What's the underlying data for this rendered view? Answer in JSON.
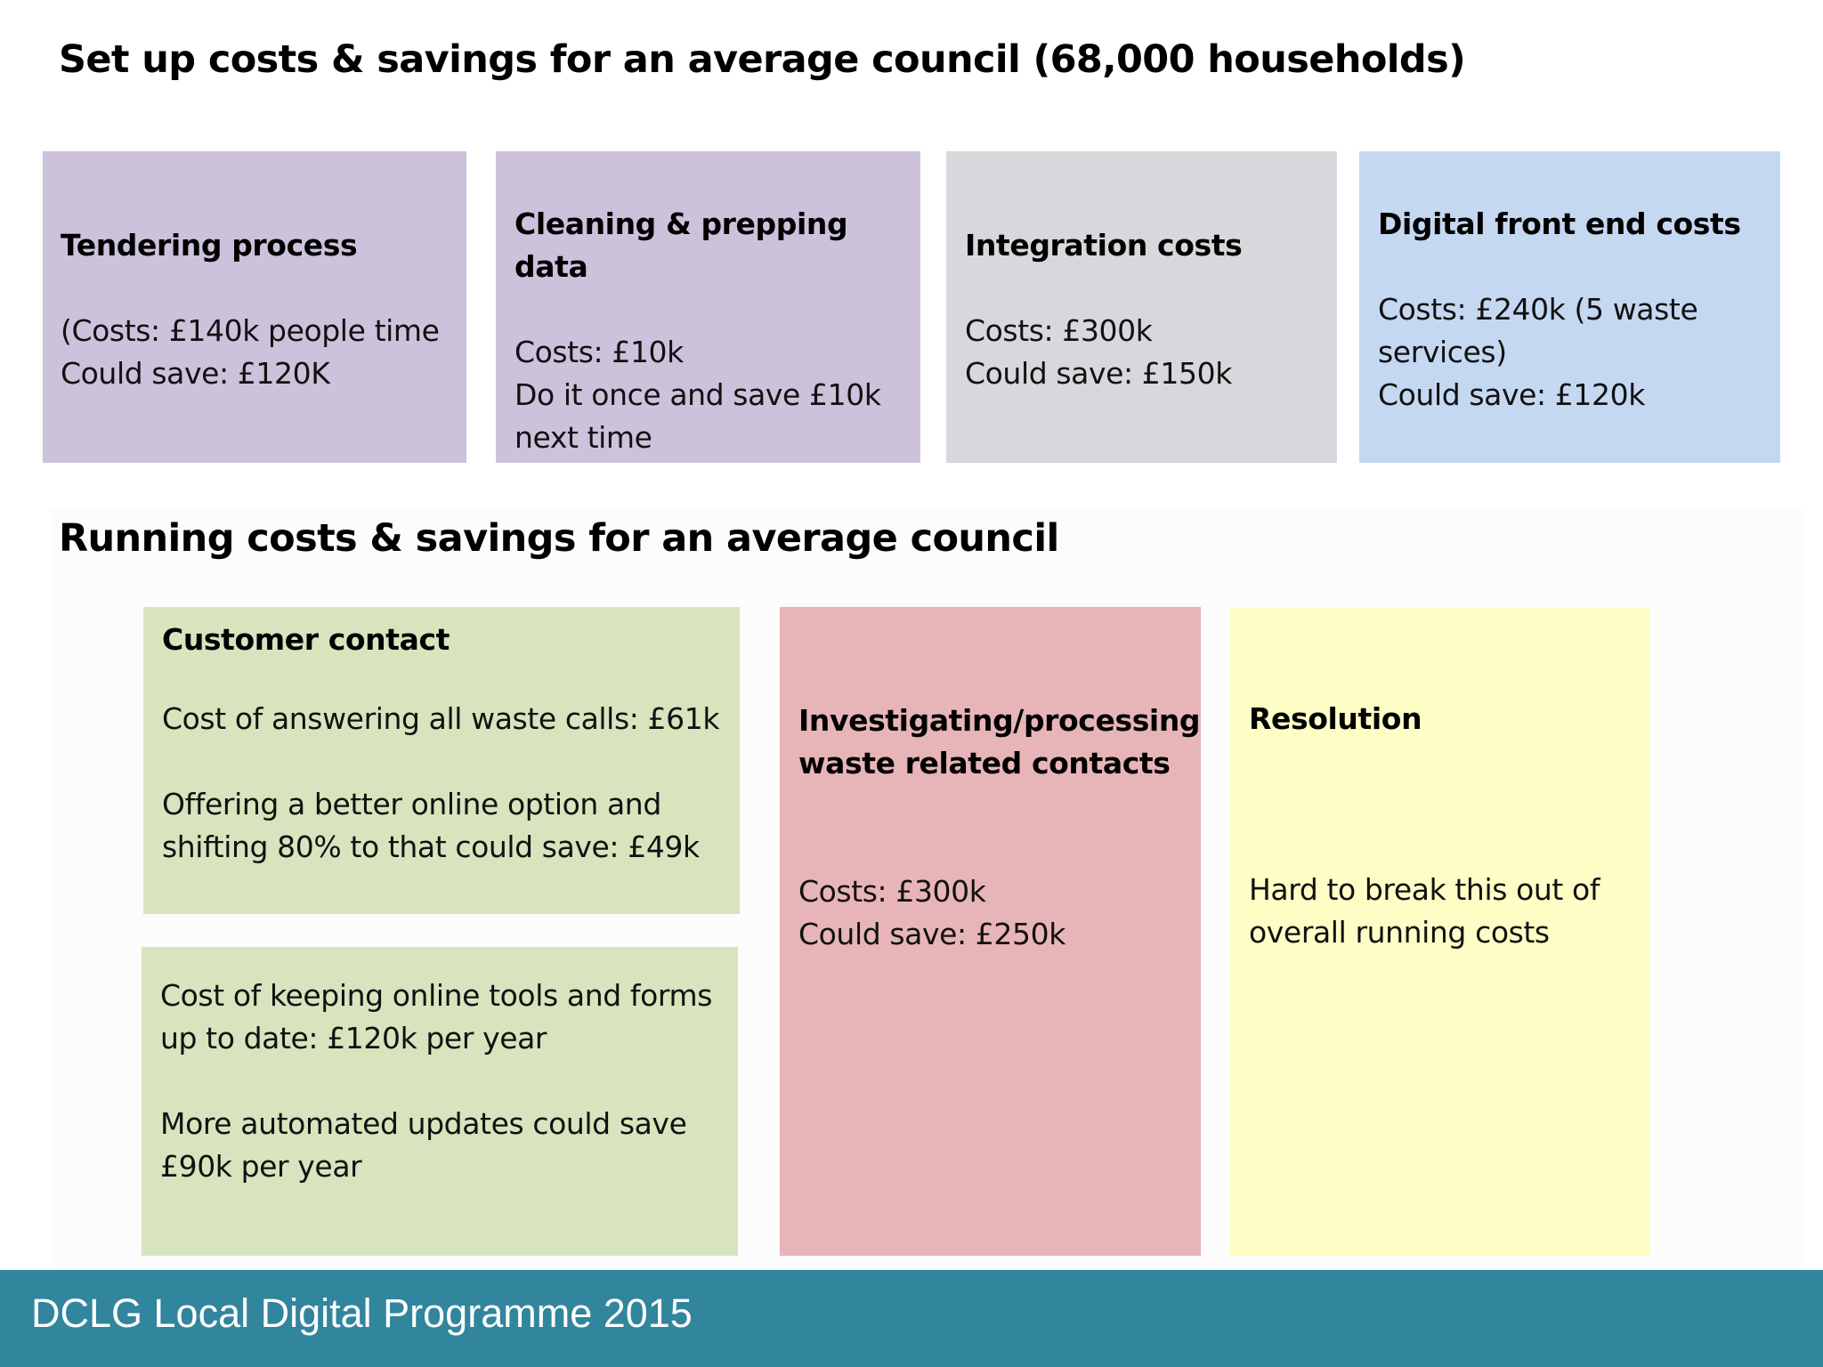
{
  "setup": {
    "heading": "Set up costs & savings for an average council (68,000 households)",
    "tendering": {
      "title": "Tendering process",
      "line1": "(Costs: £140k people time",
      "line2": "Could save: £120K",
      "color": "#ccc2dc"
    },
    "cleaning": {
      "title": "Cleaning & prepping data",
      "line1": "Costs: £10k",
      "line2": "Do it once and save £10k",
      "line3": "next time",
      "color": "#ccc2dc"
    },
    "integration": {
      "title": "Integration costs",
      "line1": "Costs: £300k",
      "line2": "Could save: £150k",
      "color": "#d9d7dc"
    },
    "digital": {
      "title": "Digital front end costs",
      "line1": "Costs: £240k (5 waste",
      "line2": "services)",
      "line3": "Could save: £120k",
      "color": "#c5d8f1"
    }
  },
  "running": {
    "heading": "Running costs & savings for an average council",
    "customer": {
      "title": "Customer contact",
      "line1": "Cost of answering all waste calls: £61k",
      "line2": "Offering a better online option and",
      "line3": "shifting 80% to that could save: £49k",
      "color": "#d8e4bd"
    },
    "online": {
      "line1": "Cost of keeping online tools and forms",
      "line2": "up to date: £120k per year",
      "line3": "More automated updates could save",
      "line4": "£90k per year",
      "color": "#d8e4bd"
    },
    "investigating": {
      "title1": "Investigating/processing",
      "title2": "waste related contacts",
      "line1": "Costs: £300k",
      "line2": "Could save: £250k",
      "color": "#e7b5b8"
    },
    "resolution": {
      "title": "Resolution",
      "line1": "Hard to break this out of",
      "line2": "overall running costs",
      "color": "#fdfdc5"
    }
  },
  "footer": {
    "text": "DCLG Local Digital Programme 2015",
    "color": "#31859c"
  }
}
